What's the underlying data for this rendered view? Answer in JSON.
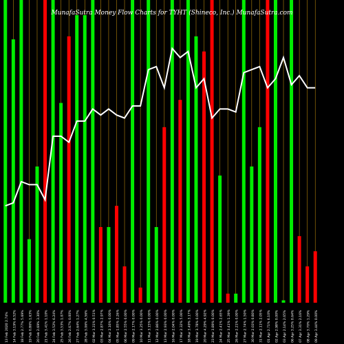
{
  "chart_data": {
    "type": "bar",
    "title": "MunafaSutra  Money Flow  Charts for TYHT  (Shineco, Inc.) MunafaSutra.com",
    "colors": {
      "background": "#000000",
      "up": "#00ee00",
      "down": "#ff0000",
      "line": "#ffffff",
      "grid": "#b8860b"
    },
    "grid": true,
    "ylim": [
      0,
      100
    ],
    "categories": [
      "13 Feb 2020 2.74%",
      "14 Feb 3.19% 8.52%",
      "18 Feb 2.77% 5.69%",
      "19 Feb 0.86% 1.63%",
      "20 Feb 2.69% 3.30%",
      "21 Feb 3.41% 1.10%",
      "24 Feb 3.52% 6.24%",
      "25 Feb 3.53% 1.07%",
      "26 Feb 2.67% 0.00%",
      "27 Feb 2.64% 1.27%",
      "28 Feb 3.06% 4.56%",
      "02 Mar 3.31% 0.51%",
      "03 Mar 2.87% 2.97%",
      "04 Mar 2.16% 0.00%",
      "05 Mar 1.85% 2.26%",
      "06 Mar 2.55% 0.00%",
      "09 Mar 2.17% 0.00%",
      "10 Mar 3.25% 0.00%",
      "11 Mar 3.15% 0.00%",
      "12 Mar 2.86% 0.00%",
      "13 Mar 2.93% 0.00%",
      "16 Mar 2.04% 0.00%",
      "17 Mar 2.32% 5.00%",
      "18 Mar 3.49% 3.17%",
      "19 Mar 3.78% 0.00%",
      "20 Mar 4.29% 4.92%",
      "23 Mar 3.89% 0.00%",
      "24 Mar 2.41% 2.65%",
      "25 Mar 3.41% 1.39%",
      "26 Mar 2.21% 0.00%",
      "27 Mar 2.74% 1.50%",
      "30 Mar 2.03% 0.80%",
      "31 Mar 2.11% 2.05%",
      "01 Apr 2.71% 6.10%",
      "02 Apr 2.98% 0.00%",
      "03 Apr 2.14% 2.65%",
      "06 Apr 3.25% 0.64%",
      "07 Apr 3.31% 2.16%",
      "08 Apr 3.70% 1.29%",
      "09 Apr 3.44% 0.00%"
    ],
    "series": [
      {
        "kind": "bars",
        "values": [
          100,
          87,
          100,
          21,
          45,
          100,
          100,
          66,
          88,
          95,
          95,
          100,
          25,
          25,
          32,
          12,
          100,
          5,
          100,
          25,
          58,
          100,
          67,
          100,
          88,
          83,
          100,
          42,
          3,
          3,
          100,
          45,
          58,
          100,
          100,
          0.8,
          100,
          22,
          12,
          17
        ],
        "colors": [
          "up",
          "up",
          "up",
          "up",
          "up",
          "down",
          "up",
          "up",
          "down",
          "up",
          "up",
          "up",
          "down",
          "up",
          "down",
          "down",
          "up",
          "down",
          "up",
          "up",
          "down",
          "up",
          "down",
          "up",
          "up",
          "down",
          "down",
          "up",
          "down",
          "up",
          "up",
          "up",
          "up",
          "down",
          "up",
          "up",
          "up",
          "down",
          "down",
          "down"
        ]
      },
      {
        "kind": "line",
        "values": [
          32,
          33,
          40,
          39,
          39,
          34,
          55,
          55,
          53,
          60,
          60,
          64,
          62,
          64,
          62,
          61,
          65,
          65,
          77,
          78,
          71,
          84,
          81,
          83,
          71,
          74,
          61,
          64,
          64,
          63,
          76,
          77,
          78,
          71,
          74,
          81,
          72,
          75,
          71,
          71
        ]
      }
    ]
  }
}
